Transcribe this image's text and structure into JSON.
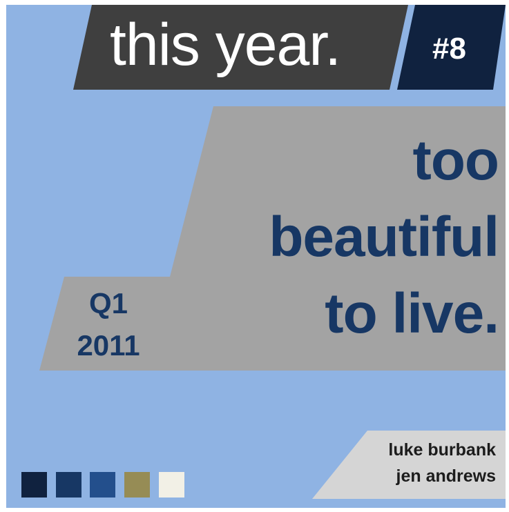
{
  "header": {
    "title": "this year.",
    "number": "#8"
  },
  "main": {
    "title_lines": [
      "too",
      "beautiful",
      "to live."
    ]
  },
  "period": {
    "lines": [
      "Q1",
      "2011"
    ]
  },
  "credits": {
    "names": [
      "luke burbank",
      "jen andrews"
    ]
  },
  "palette": {
    "background": "#8fb3e3",
    "title_bar": "#3f3f3f",
    "number_bar": "#10223f",
    "main_panel": "#a3a3a3",
    "title_text": "#173764",
    "credits_panel": "#d5d5d5",
    "swatches": [
      "#10223f",
      "#173764",
      "#234f8c",
      "#968c55",
      "#f2f0e6"
    ]
  }
}
